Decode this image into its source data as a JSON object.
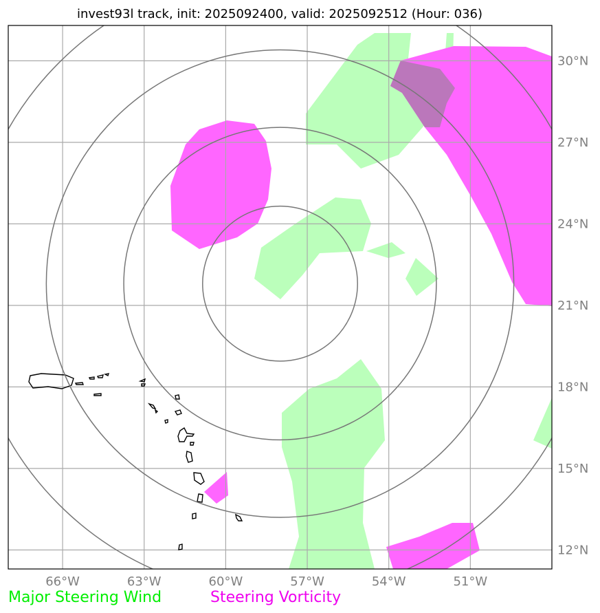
{
  "title": "invest93l track, init: 2025092400, valid: 2025092512 (Hour: 036)",
  "map": {
    "lon_range": [
      -68,
      -48
    ],
    "lat_range": [
      11.3,
      31.3
    ],
    "lon_ticks": [
      {
        "value": -66,
        "label": "66°W"
      },
      {
        "value": -63,
        "label": "63°W"
      },
      {
        "value": -60,
        "label": "60°W"
      },
      {
        "value": -57,
        "label": "57°W"
      },
      {
        "value": -54,
        "label": "54°W"
      },
      {
        "value": -51,
        "label": "51°W"
      }
    ],
    "lat_ticks": [
      {
        "value": 30,
        "label": "30°N"
      },
      {
        "value": 27,
        "label": "27°N"
      },
      {
        "value": 24,
        "label": "24°N"
      },
      {
        "value": 21,
        "label": "21°N"
      },
      {
        "value": 18,
        "label": "18°N"
      },
      {
        "value": 15,
        "label": "15°N"
      },
      {
        "value": 12,
        "label": "12°N"
      }
    ],
    "range_rings": {
      "center": {
        "lon": -58,
        "lat": 21.8
      },
      "radii_deg": [
        2.85,
        5.75,
        8.6,
        11.5
      ]
    }
  },
  "legend": {
    "wind_label": "Major Steering Wind",
    "vorticity_label": "Steering Vorticity"
  },
  "colors": {
    "wind_fill": "#bbffbb",
    "vorticity_fill": "#ff66ff",
    "overlap_fill": "#bb77bb",
    "wind_text": "#00ee00",
    "vorticity_text": "#ee00ee",
    "ring": "#777777",
    "grid": "#aaaaaa",
    "coast": "#000000"
  }
}
